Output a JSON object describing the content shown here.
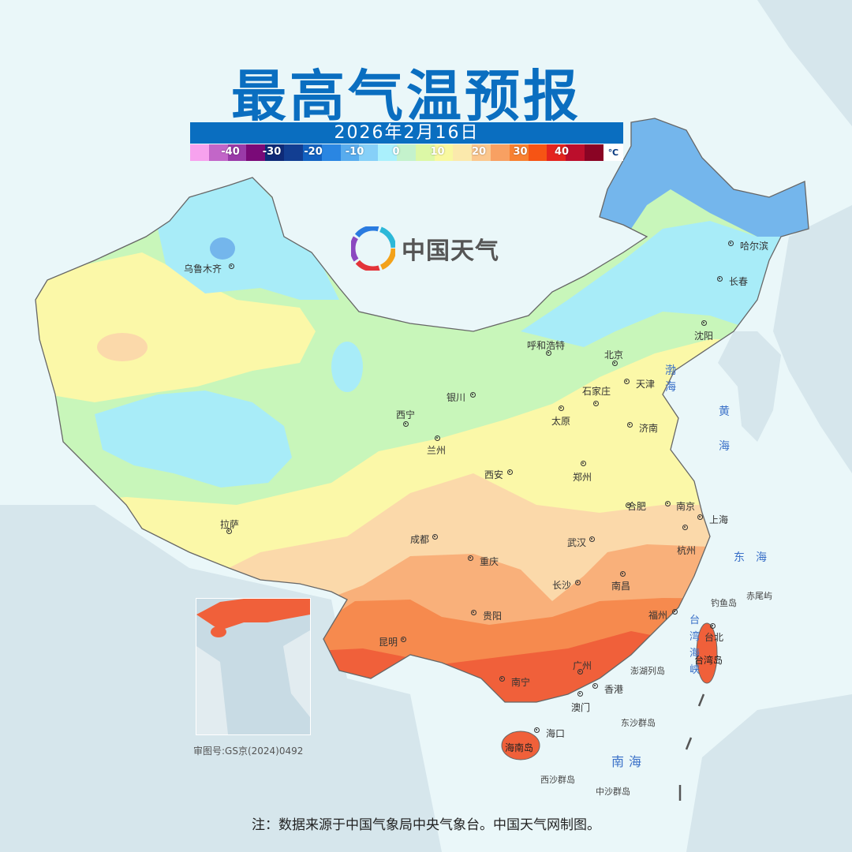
{
  "header": {
    "title": "最高气温预报",
    "date": "2026年2月16日"
  },
  "legend": {
    "labels": [
      "-40",
      "-30",
      "-20",
      "-10",
      "0",
      "10",
      "20",
      "30",
      "40"
    ],
    "unit": "℃",
    "colors": [
      "#f7a2ee",
      "#c266c8",
      "#9a3aa8",
      "#7a0a78",
      "#0e2a78",
      "#123e92",
      "#1262c2",
      "#2a86e2",
      "#58acee",
      "#86d0f8",
      "#aaf0fc",
      "#c4f2cc",
      "#dcf8a6",
      "#f8f8a0",
      "#fbe9ac",
      "#fbc78e",
      "#f8a062",
      "#f88030",
      "#f65414",
      "#e4241e",
      "#bc0e2c",
      "#8a0424"
    ]
  },
  "temperature_colors": {
    "cold_blue": "#74b6ec",
    "cyan": "#a8ecf8",
    "green": "#c8f6ba",
    "yellow": "#fbf8a8",
    "peach": "#fbd9aa",
    "light_orange": "#f9b07a",
    "orange": "#f68a4e",
    "red": "#f0603a"
  },
  "logo": {
    "text": "中国天气"
  },
  "cities": [
    {
      "name": "乌鲁木齐"
    },
    {
      "name": "哈尔滨"
    },
    {
      "name": "长春"
    },
    {
      "name": "沈阳"
    },
    {
      "name": "呼和浩特"
    },
    {
      "name": "北京"
    },
    {
      "name": "天津"
    },
    {
      "name": "石家庄"
    },
    {
      "name": "银川"
    },
    {
      "name": "西宁"
    },
    {
      "name": "太原"
    },
    {
      "name": "济南"
    },
    {
      "name": "兰州"
    },
    {
      "name": "西安"
    },
    {
      "name": "郑州"
    },
    {
      "name": "合肥"
    },
    {
      "name": "南京"
    },
    {
      "name": "上海"
    },
    {
      "name": "拉萨"
    },
    {
      "name": "成都"
    },
    {
      "name": "武汉"
    },
    {
      "name": "杭州"
    },
    {
      "name": "重庆"
    },
    {
      "name": "长沙"
    },
    {
      "name": "南昌"
    },
    {
      "name": "贵阳"
    },
    {
      "name": "昆明"
    },
    {
      "name": "福州"
    },
    {
      "name": "台北"
    },
    {
      "name": "南宁"
    },
    {
      "name": "广州"
    },
    {
      "name": "香港"
    },
    {
      "name": "澳门"
    },
    {
      "name": "海口"
    }
  ],
  "places": {
    "taiwan": "台湾岛",
    "hainan": "海南岛",
    "diaoyu": "钓鱼岛",
    "chiwei": "赤尾屿",
    "penghu": "澎湖列岛",
    "dongsha": "东沙群岛",
    "xisha": "西沙群岛",
    "zhongsha": "中沙群岛"
  },
  "seas": {
    "bohai": "渤海",
    "huanghai": "黄海",
    "donghai": "东海",
    "nanhai": "南海",
    "taiwan_strait": "台湾海峡"
  },
  "approval": "审图号:GS京(2024)0492",
  "footer": "注：数据来源于中国气象局中央气象台。中国天气网制图。"
}
